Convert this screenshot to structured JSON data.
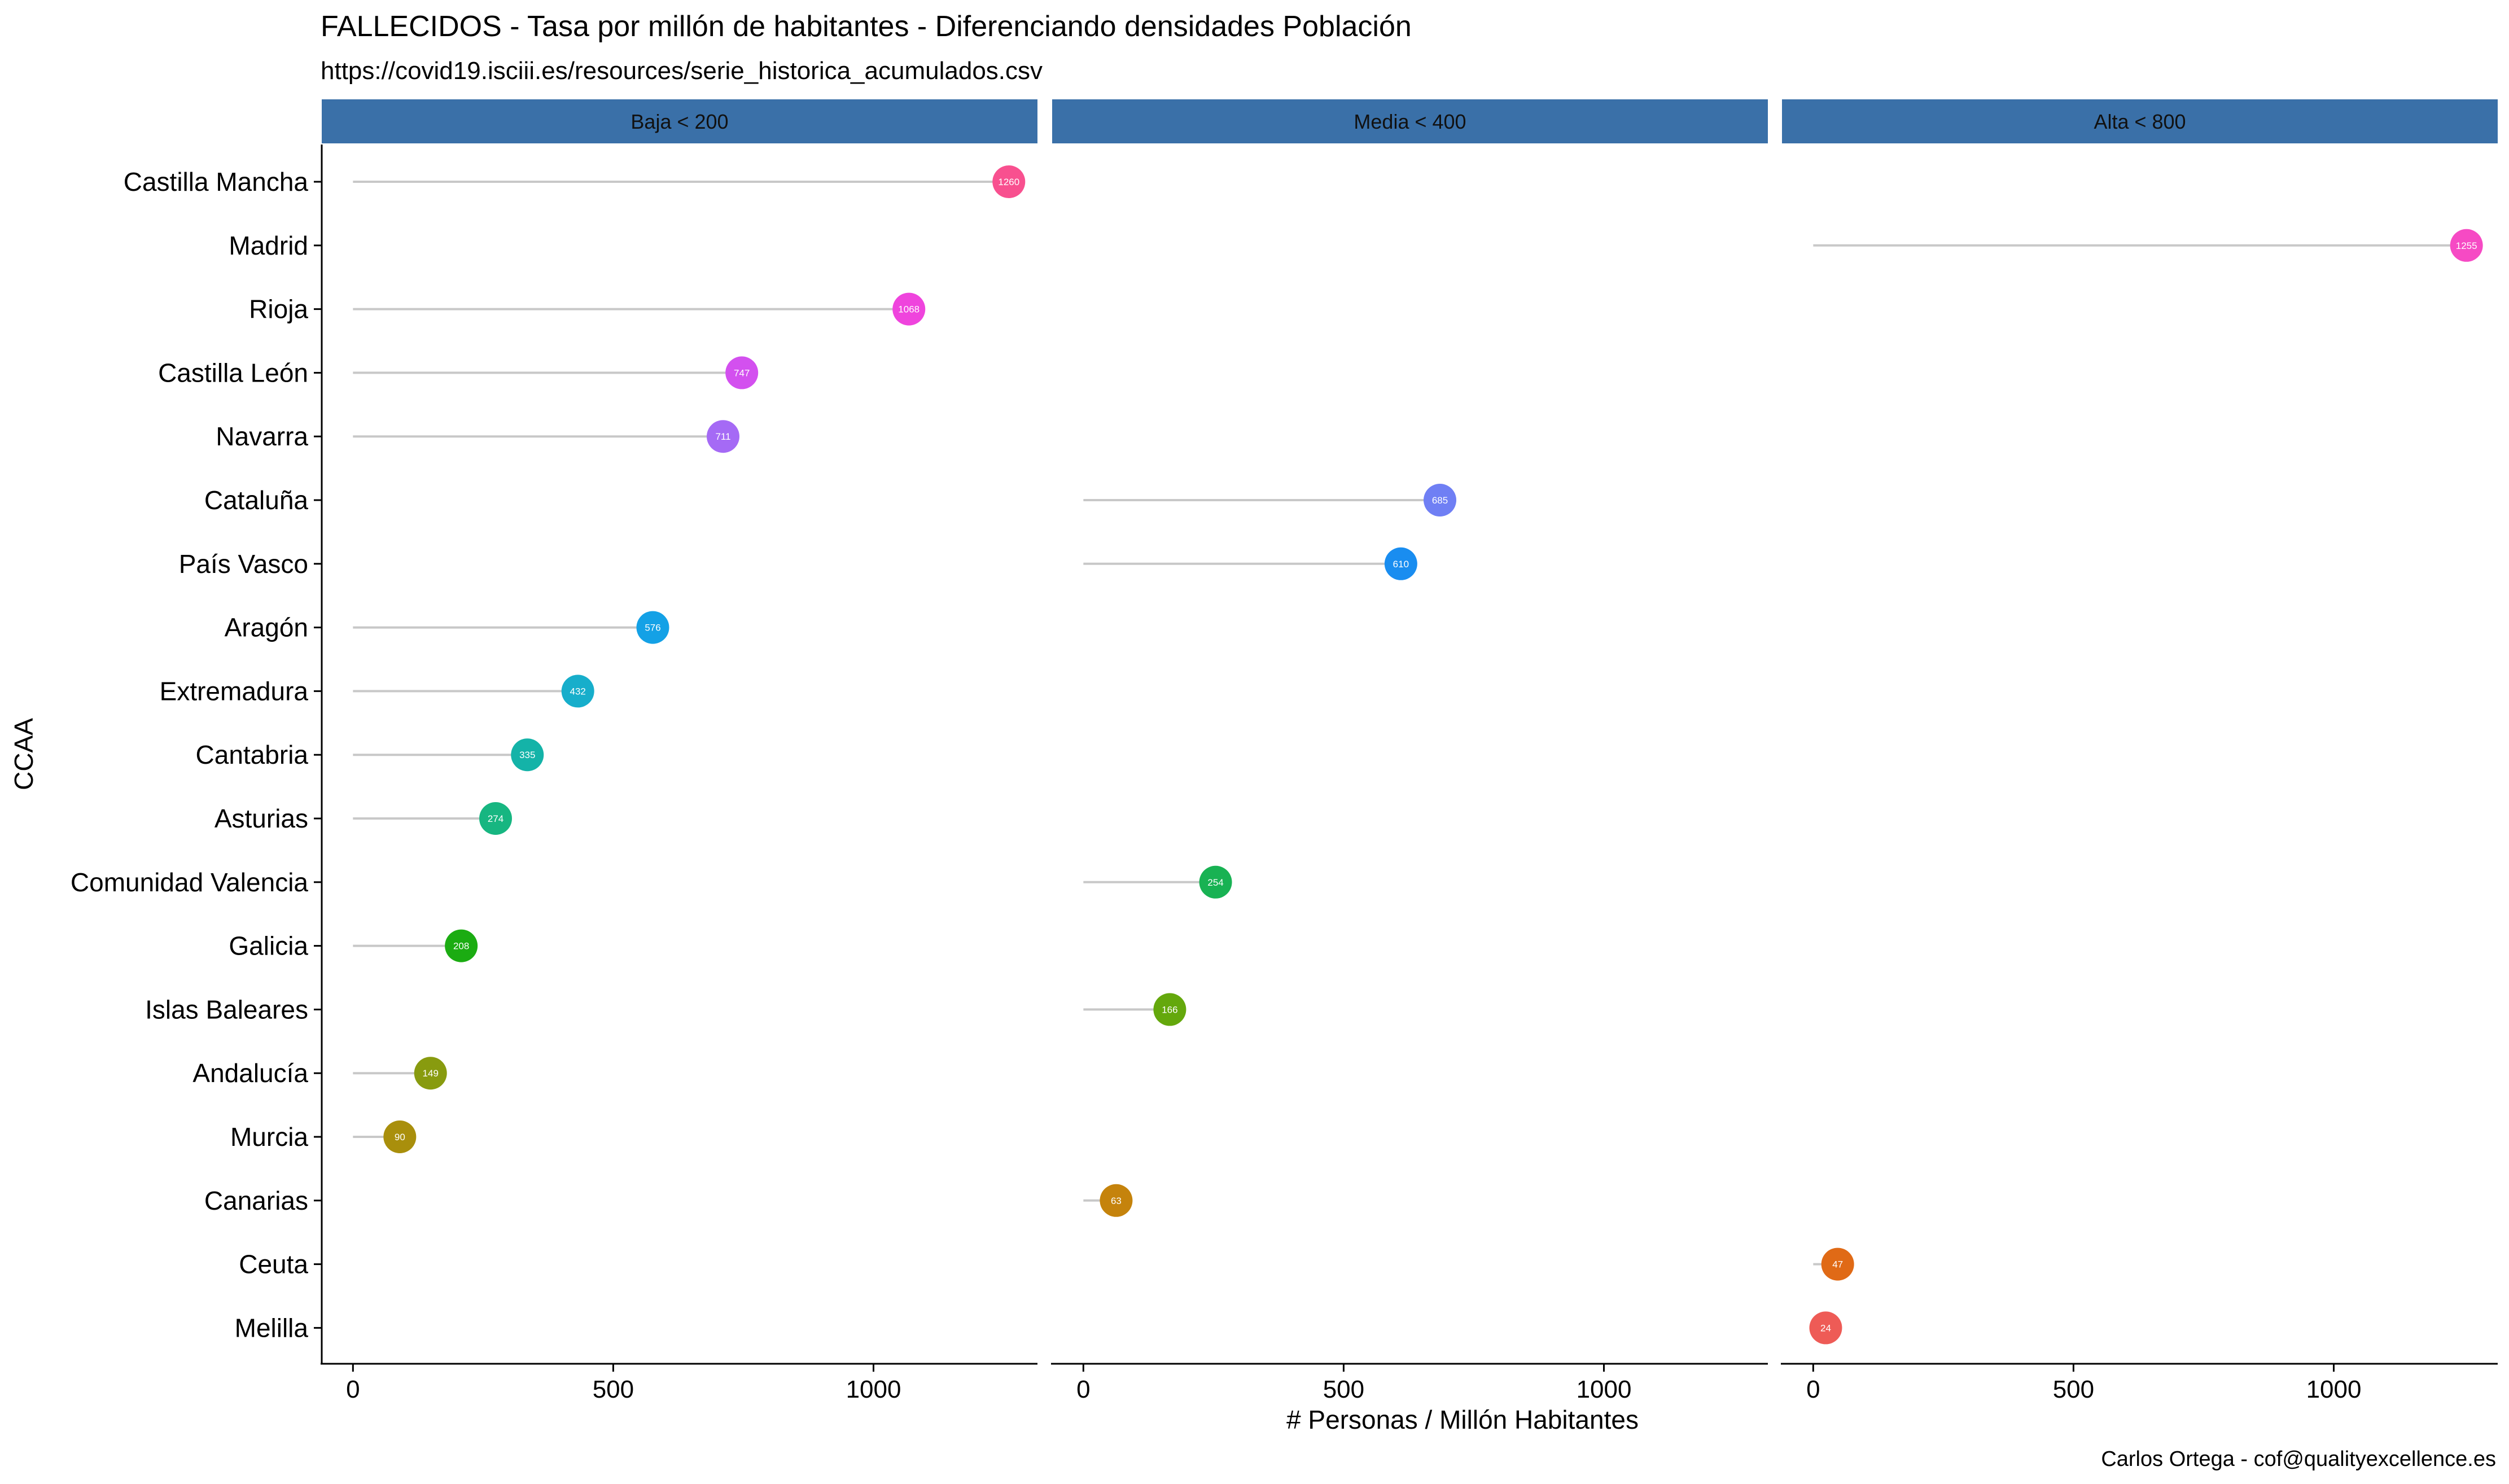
{
  "chart_data": {
    "type": "lollipop",
    "title": "FALLECIDOS - Tasa por millón de habitantes - Diferenciando densidades Población",
    "subtitle": "https://covid19.isciii.es/resources/serie_historica_acumulados.csv",
    "xlabel": "# Personas / Millón Habitantes",
    "ylabel": "CCAA",
    "caption": "Carlos Ortega - cof@qualityexcellence.es",
    "xlim": [
      -60,
      1315
    ],
    "x_ticks": [
      0,
      500,
      1000
    ],
    "x_tick_labels": [
      "0",
      "500",
      "1000"
    ],
    "grid": false,
    "legend": "none",
    "strip_color": "#3a70a8",
    "stem_color": "#c8c8c8",
    "panels": [
      "Baja < 200",
      "Media < 400",
      "Alta < 800"
    ],
    "categories": [
      "Castilla Mancha",
      "Madrid",
      "Rioja",
      "Castilla León",
      "Navarra",
      "Cataluña",
      "País Vasco",
      "Aragón",
      "Extremadura",
      "Cantabria",
      "Asturias",
      "Comunidad Valencia",
      "Galicia",
      "Islas Baleares",
      "Andalucía",
      "Murcia",
      "Canarias",
      "Ceuta",
      "Melilla"
    ],
    "points": [
      {
        "category": "Castilla Mancha",
        "panel": 0,
        "value": 1260,
        "label": "1260",
        "color": "#f8508f"
      },
      {
        "category": "Madrid",
        "panel": 2,
        "value": 1255,
        "label": "1255",
        "color": "#f64ac4"
      },
      {
        "category": "Rioja",
        "panel": 0,
        "value": 1068,
        "label": "1068",
        "color": "#ef44dd"
      },
      {
        "category": "Castilla León",
        "panel": 0,
        "value": 747,
        "label": "747",
        "color": "#d350ef"
      },
      {
        "category": "Navarra",
        "panel": 0,
        "value": 711,
        "label": "711",
        "color": "#a56af5"
      },
      {
        "category": "Cataluña",
        "panel": 1,
        "value": 685,
        "label": "685",
        "color": "#6f7ff4"
      },
      {
        "category": "País Vasco",
        "panel": 1,
        "value": 610,
        "label": "610",
        "color": "#198df0"
      },
      {
        "category": "Aragón",
        "panel": 0,
        "value": 576,
        "label": "576",
        "color": "#14a1e6"
      },
      {
        "category": "Extremadura",
        "panel": 0,
        "value": 432,
        "label": "432",
        "color": "#17aecb"
      },
      {
        "category": "Cantabria",
        "panel": 0,
        "value": 335,
        "label": "335",
        "color": "#14b3a8"
      },
      {
        "category": "Asturias",
        "panel": 0,
        "value": 274,
        "label": "274",
        "color": "#17b681"
      },
      {
        "category": "Comunidad Valencia",
        "panel": 1,
        "value": 254,
        "label": "254",
        "color": "#18b253"
      },
      {
        "category": "Galicia",
        "panel": 0,
        "value": 208,
        "label": "208",
        "color": "#1bac12"
      },
      {
        "category": "Islas Baleares",
        "panel": 1,
        "value": 166,
        "label": "166",
        "color": "#64a80c"
      },
      {
        "category": "Andalucía",
        "panel": 0,
        "value": 149,
        "label": "149",
        "color": "#889b0f"
      },
      {
        "category": "Murcia",
        "panel": 0,
        "value": 90,
        "label": "90",
        "color": "#a98f0c"
      },
      {
        "category": "Canarias",
        "panel": 1,
        "value": 63,
        "label": "63",
        "color": "#c5830c"
      },
      {
        "category": "Ceuta",
        "panel": 2,
        "value": 47,
        "label": "47",
        "color": "#e06a16"
      },
      {
        "category": "Melilla",
        "panel": 2,
        "value": 24,
        "label": "24",
        "color": "#ee5b56"
      }
    ]
  }
}
